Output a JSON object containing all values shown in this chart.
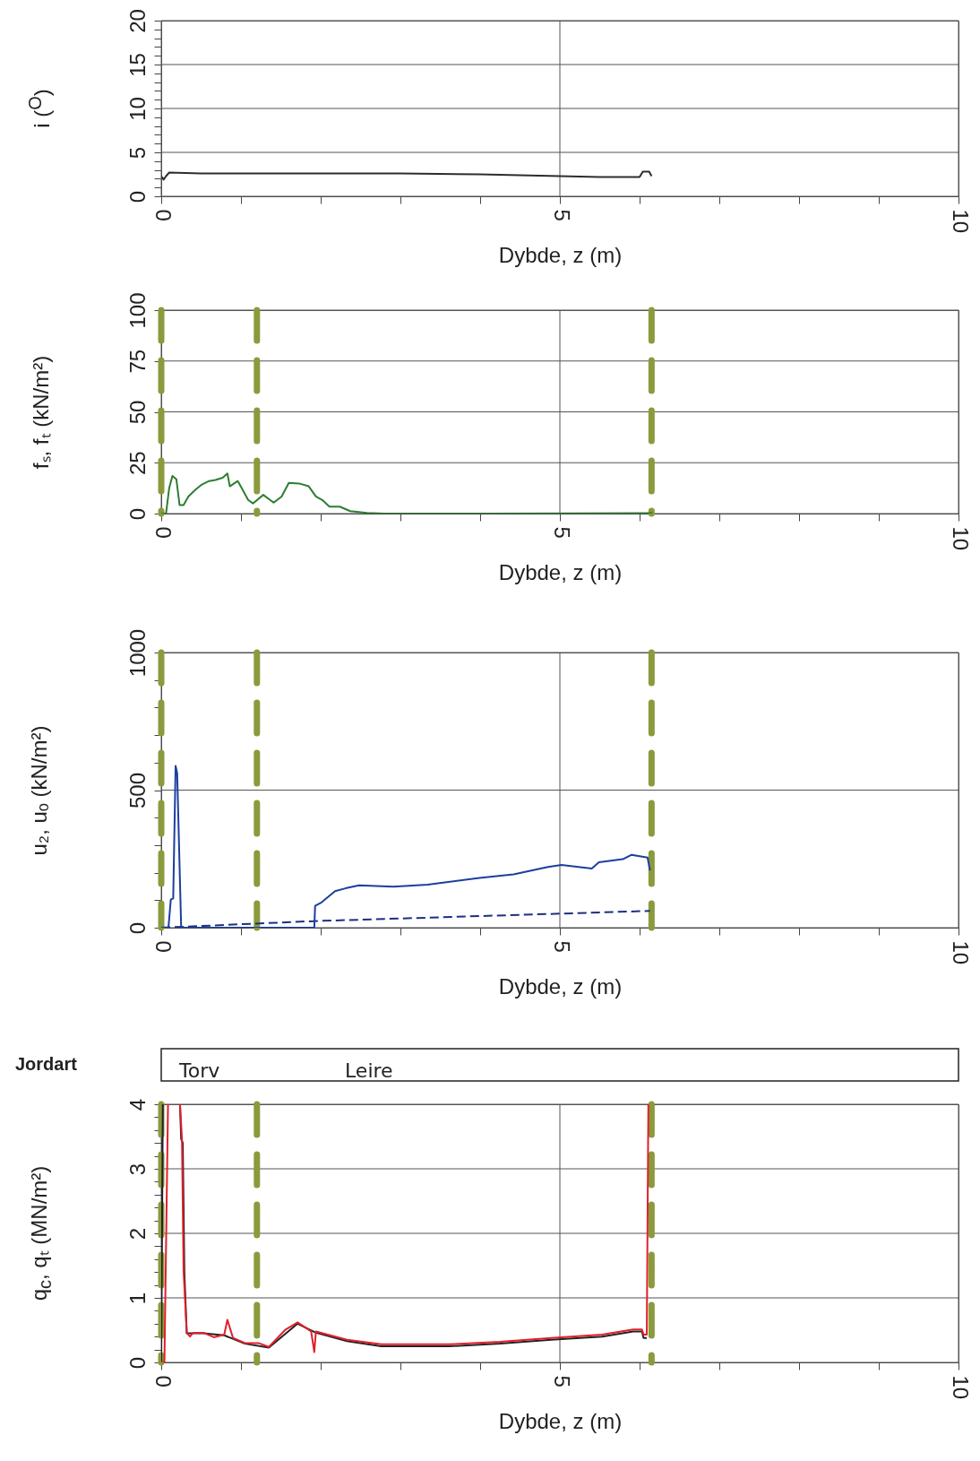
{
  "chart_data": [
    {
      "type": "line",
      "ylabel": "i ($^{O}$)",
      "xlabel": "Dybde, z (m)",
      "xlim": [
        0,
        10
      ],
      "xticks": [
        0,
        {
          "value": 1,
          "label": null
        },
        {
          "value": 2,
          "label": null
        },
        {
          "value": 3,
          "label": null
        },
        {
          "value": 4,
          "label": null
        },
        5,
        {
          "value": 6,
          "label": null
        },
        {
          "value": 7,
          "label": null
        },
        {
          "value": 8,
          "label": null
        },
        {
          "value": 9,
          "label": null
        },
        10
      ],
      "ylim": [
        0,
        20
      ],
      "yticks": [
        0,
        {
          "value": 1,
          "label": null
        },
        {
          "value": 2,
          "label": null
        },
        {
          "value": 3,
          "label": null
        },
        {
          "value": 4,
          "label": null
        },
        5,
        {
          "value": 6,
          "label": null
        },
        {
          "value": 7,
          "label": null
        },
        {
          "value": 8,
          "label": null
        },
        {
          "value": 9,
          "label": null
        },
        10,
        {
          "value": 11,
          "label": null
        },
        {
          "value": 12,
          "label": null
        },
        {
          "value": 13,
          "label": null
        },
        {
          "value": 14,
          "label": null
        },
        15,
        {
          "value": 16,
          "label": null
        },
        {
          "value": 17,
          "label": null
        },
        {
          "value": 18,
          "label": null
        },
        {
          "value": 19,
          "label": null
        },
        20
      ],
      "grid": true,
      "series": [
        {
          "color": "#2b2f2b",
          "x": [
            0,
            0.03,
            0.06,
            0.1,
            0.5,
            1,
            2,
            3,
            4,
            5,
            5.5,
            6,
            6.04,
            6.12,
            6.15
          ],
          "values": [
            2.3,
            1.9,
            2.3,
            2.7,
            2.6,
            2.6,
            2.6,
            2.6,
            2.5,
            2.3,
            2.2,
            2.2,
            2.8,
            2.8,
            2.3
          ]
        }
      ]
    },
    {
      "type": "line",
      "ylabel": "fₛ, fₜ (kN/m²)",
      "xlabel": "Dybde, z (m)",
      "xlim": [
        0,
        10
      ],
      "xticks": [
        0,
        {
          "value": 1,
          "label": null
        },
        {
          "value": 2,
          "label": null
        },
        {
          "value": 3,
          "label": null
        },
        {
          "value": 4,
          "label": null
        },
        5,
        {
          "value": 6,
          "label": null
        },
        {
          "value": 7,
          "label": null
        },
        {
          "value": 8,
          "label": null
        },
        {
          "value": 9,
          "label": null
        },
        10
      ],
      "ylim": [
        0,
        100
      ],
      "yticks": [
        0,
        25,
        50,
        75,
        100
      ],
      "grid": true,
      "series": [
        {
          "color": "#2e7d32",
          "x": [
            0,
            0.06,
            0.1,
            0.14,
            0.19,
            0.23,
            0.28,
            0.34,
            0.43,
            0.51,
            0.6,
            0.68,
            0.77,
            0.83,
            0.86,
            0.96,
            1.02,
            1.09,
            1.15,
            1.28,
            1.41,
            1.51,
            1.6,
            1.73,
            1.85,
            1.94,
            2.02,
            2.11,
            2.24,
            2.37,
            2.58,
            2.79,
            4.07,
            6.16
          ],
          "values": [
            0,
            0,
            12.6,
            18.5,
            16.8,
            4.2,
            4.2,
            8.4,
            11.8,
            14.3,
            16,
            16.5,
            17.6,
            19.7,
            13.4,
            16,
            11.8,
            6.7,
            5,
            9.2,
            5.4,
            8.4,
            15.1,
            14.8,
            13.4,
            8.4,
            6.7,
            3.4,
            3.4,
            1.2,
            0.3,
            0,
            0,
            0.2
          ]
        }
      ],
      "ref_lines": [
        {
          "axis": "x",
          "value": 0,
          "color": "#8b9a3c",
          "line_style": "dashed"
        },
        {
          "axis": "x",
          "value": 1.2,
          "color": "#8b9a3c",
          "line_style": "dashed"
        },
        {
          "axis": "x",
          "value": 6.15,
          "color": "#8b9a3c",
          "line_style": "dashed"
        }
      ]
    },
    {
      "type": "line",
      "ylabel": "u₂, uₒ (kN/m²)",
      "xlabel": "Dybde, z (m)",
      "xlim": [
        0,
        10
      ],
      "xticks": [
        0,
        {
          "value": 1,
          "label": null
        },
        {
          "value": 2,
          "label": null
        },
        {
          "value": 3,
          "label": null
        },
        {
          "value": 4,
          "label": null
        },
        5,
        {
          "value": 6,
          "label": null
        },
        {
          "value": 7,
          "label": null
        },
        {
          "value": 8,
          "label": null
        },
        {
          "value": 9,
          "label": null
        },
        10
      ],
      "ylim": [
        0,
        1000
      ],
      "yticks": [
        0,
        {
          "value": 100,
          "label": null
        },
        {
          "value": 200,
          "label": null
        },
        {
          "value": 300,
          "label": null
        },
        {
          "value": 400,
          "label": null
        },
        500,
        {
          "value": 600,
          "label": null
        },
        {
          "value": 700,
          "label": null
        },
        {
          "value": 800,
          "label": null
        },
        {
          "value": 900,
          "label": null
        },
        1000
      ],
      "grid": true,
      "series": [
        {
          "color": "#1c2f80",
          "line_style": "dashed",
          "x": [
            0,
            1.92,
            6.13
          ],
          "values": [
            0,
            24,
            61
          ]
        },
        {
          "color": "#1c3f9f",
          "x": [
            0,
            0.09,
            0.12,
            0.15,
            0.18,
            0.2,
            0.25,
            1.92,
            1.93,
            2.01,
            2.18,
            2.31,
            2.48,
            2.91,
            3.34,
            3.99,
            4.42,
            4.85,
            5.02,
            5.4,
            5.49,
            5.79,
            5.9,
            6.1,
            6.13
          ],
          "values": [
            0,
            0,
            102,
            106,
            588,
            561,
            0,
            0,
            79,
            92,
            133,
            143,
            154,
            149,
            156,
            181,
            194,
            221,
            228,
            215,
            238,
            249,
            265,
            255,
            208
          ]
        }
      ],
      "ref_lines": [
        {
          "axis": "x",
          "value": 0,
          "color": "#8b9a3c",
          "line_style": "dashed"
        },
        {
          "axis": "x",
          "value": 1.2,
          "color": "#8b9a3c",
          "line_style": "dashed"
        },
        {
          "axis": "x",
          "value": 6.15,
          "color": "#8b9a3c",
          "line_style": "dashed"
        }
      ]
    },
    {
      "type": "line",
      "ylabel": "q$_{c}$, qₜ (MN/m²)",
      "xlabel": "Dybde, z (m)",
      "xlim": [
        0,
        10
      ],
      "xticks": [
        0,
        {
          "value": 1,
          "label": null
        },
        {
          "value": 2,
          "label": null
        },
        {
          "value": 3,
          "label": null
        },
        {
          "value": 4,
          "label": null
        },
        5,
        {
          "value": 6,
          "label": null
        },
        {
          "value": 7,
          "label": null
        },
        {
          "value": 8,
          "label": null
        },
        {
          "value": 9,
          "label": null
        },
        10
      ],
      "ylim": [
        0,
        4
      ],
      "yticks": [
        0,
        {
          "value": 0.2,
          "label": null
        },
        {
          "value": 0.4,
          "label": null
        },
        {
          "value": 0.6,
          "label": null
        },
        {
          "value": 0.8,
          "label": null
        },
        1,
        {
          "value": 1.2,
          "label": null
        },
        {
          "value": 1.4,
          "label": null
        },
        {
          "value": 1.6,
          "label": null
        },
        {
          "value": 1.8,
          "label": null
        },
        2,
        {
          "value": 2.2,
          "label": null
        },
        {
          "value": 2.4,
          "label": null
        },
        {
          "value": 2.6,
          "label": null
        },
        {
          "value": 2.8,
          "label": null
        },
        3,
        {
          "value": 3.2,
          "label": null
        },
        {
          "value": 3.4,
          "label": null
        },
        {
          "value": 3.6,
          "label": null
        },
        {
          "value": 3.8,
          "label": null
        },
        4
      ],
      "grid": true,
      "series": [
        {
          "color": "#222222",
          "x": [
            0,
            0.02,
            0.1,
            0.235,
            0.25,
            0.27,
            0.29,
            0.32,
            0.53,
            0.79,
            1.05,
            1.35,
            1.71,
            1.94,
            2.33,
            2.76,
            3.61,
            4.25,
            4.89,
            5.53,
            5.92,
            6.03,
            6.05,
            6.09
          ],
          "values": [
            0,
            4,
            null,
            4,
            3.46,
            3.4,
            1.4,
            0.45,
            0.45,
            0.42,
            0.29,
            0.23,
            0.6,
            0.46,
            0.33,
            0.25,
            0.25,
            0.29,
            0.35,
            0.4,
            0.48,
            0.48,
            0.38,
            0.38
          ]
        },
        {
          "color": "#e0202a",
          "x": [
            0,
            0.04,
            0.085,
            0.16,
            0.235,
            0.26,
            0.28,
            0.32,
            0.36,
            0.4,
            0.53,
            0.66,
            0.79,
            0.83,
            0.9,
            1.05,
            1.22,
            1.35,
            1.56,
            1.71,
            1.88,
            1.92,
            1.94,
            2.33,
            2.76,
            3.61,
            4.25,
            4.89,
            5.53,
            5.92,
            6.03,
            6.05,
            6.09,
            6.11
          ],
          "values": [
            0,
            0,
            4,
            null,
            4,
            3.46,
            1.42,
            0.46,
            0.4,
            0.46,
            0.46,
            0.39,
            0.43,
            0.66,
            0.38,
            0.3,
            0.3,
            0.24,
            0.51,
            0.62,
            0.48,
            0.16,
            0.48,
            0.35,
            0.28,
            0.28,
            0.32,
            0.38,
            0.43,
            0.51,
            0.51,
            0.43,
            0.43,
            4
          ]
        }
      ],
      "ref_lines": [
        {
          "axis": "x",
          "value": 0,
          "color": "#8b9a3c",
          "line_style": "dashed"
        },
        {
          "axis": "x",
          "value": 1.2,
          "color": "#8b9a3c",
          "line_style": "dashed"
        },
        {
          "axis": "x",
          "value": 6.15,
          "color": "#8b9a3c",
          "line_style": "dashed"
        }
      ],
      "annotations": [
        "Jordart",
        "Torv",
        "Leire"
      ]
    }
  ]
}
